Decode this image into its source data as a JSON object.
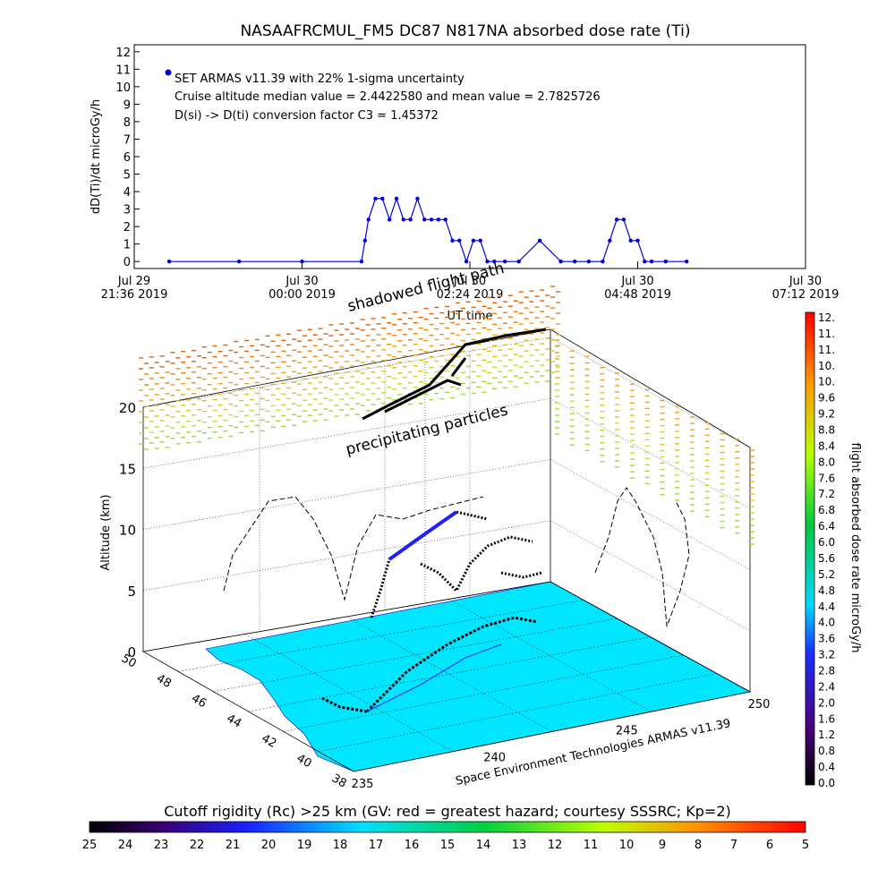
{
  "chart_data": [
    {
      "type": "line",
      "title": "NASAAFRCMUL_FM5 DC87 N817NA absorbed dose rate (Ti)",
      "ylabel": "dD(Ti)/dt microGy/h",
      "xlabel": "UT time",
      "ylim": [
        0,
        12
      ],
      "yticks": [
        0,
        1,
        2,
        3,
        4,
        5,
        6,
        7,
        8,
        9,
        10,
        11,
        12
      ],
      "xlim_hours": [
        0,
        9.6
      ],
      "xticks": [
        {
          "line1": "Jul 29",
          "line2": "21:36 2019",
          "h": 0
        },
        {
          "line1": "Jul 30",
          "line2": "00:00 2019",
          "h": 2.4
        },
        {
          "line1": "Jul 30",
          "line2": "02:24 2019",
          "h": 4.8
        },
        {
          "line1": "Jul 30",
          "line2": "04:48 2019",
          "h": 7.2
        },
        {
          "line1": "Jul 30",
          "line2": "07:12 2019",
          "h": 9.6
        }
      ],
      "legend": "SET ARMAS v11.39 with 22% 1-sigma uncertainty",
      "annotations": [
        "Cruise altitude median value = 2.4422580 and mean value = 2.7825726",
        "D(si) -> D(ti) conversion factor C3 = 1.45372"
      ],
      "series": [
        {
          "color": "#0000dd",
          "x": [
            0.5,
            1.5,
            2.4,
            3.25,
            3.3,
            3.35,
            3.45,
            3.55,
            3.65,
            3.75,
            3.85,
            3.95,
            4.05,
            4.15,
            4.25,
            4.35,
            4.45,
            4.55,
            4.65,
            4.75,
            4.85,
            4.95,
            5.05,
            5.15,
            5.3,
            5.5,
            5.8,
            6.1,
            6.3,
            6.5,
            6.7,
            6.8,
            6.9,
            7.0,
            7.1,
            7.2,
            7.3,
            7.4,
            7.6,
            7.9
          ],
          "y": [
            0,
            0,
            0,
            0,
            1.2,
            2.4,
            3.6,
            3.6,
            2.4,
            3.6,
            2.4,
            2.4,
            3.6,
            2.4,
            2.4,
            2.4,
            2.4,
            1.2,
            1.2,
            0,
            1.2,
            1.2,
            0,
            0,
            0,
            0,
            1.2,
            0,
            0,
            0,
            0,
            1.2,
            2.4,
            2.4,
            1.2,
            1.2,
            0,
            0,
            0,
            0
          ]
        }
      ]
    },
    {
      "type": "scatter",
      "title": "",
      "zlabel": "Altitude (km)",
      "zticks": [
        0,
        5,
        10,
        15,
        20
      ],
      "xticks": [
        38,
        40,
        42,
        44,
        46,
        48,
        50
      ],
      "yticks": [
        235,
        240,
        245,
        250
      ],
      "annotations": [
        "shadowed flight path",
        "precipitating particles"
      ],
      "footer": "Space Environment Technologies ARMAS v11.39",
      "colorbar": {
        "label": "flight absorbed dose rate microGy/h",
        "ticks": [
          "12.",
          "11.",
          "11.",
          "10.",
          "10.",
          "9.6",
          "9.2",
          "8.8",
          "8.4",
          "8.0",
          "7.6",
          "7.2",
          "6.8",
          "6.4",
          "6.0",
          "5.6",
          "5.2",
          "4.8",
          "4.4",
          "4.0",
          "3.6",
          "3.2",
          "2.8",
          "2.4",
          "2.0",
          "1.6",
          "1.2",
          "0.8",
          "0.4",
          "0.0"
        ]
      }
    },
    {
      "type": "heatmap",
      "title": "Cutoff rigidity (Rc) >25 km (GV: red = greatest hazard; courtesy SSSRC; Kp=2)",
      "ticks": [
        "25",
        "24",
        "23",
        "22",
        "21",
        "20",
        "19",
        "18",
        "17",
        "16",
        "15",
        "14",
        "13",
        "12",
        "11",
        "10",
        "9",
        "8",
        "7",
        "6",
        "5"
      ]
    }
  ]
}
